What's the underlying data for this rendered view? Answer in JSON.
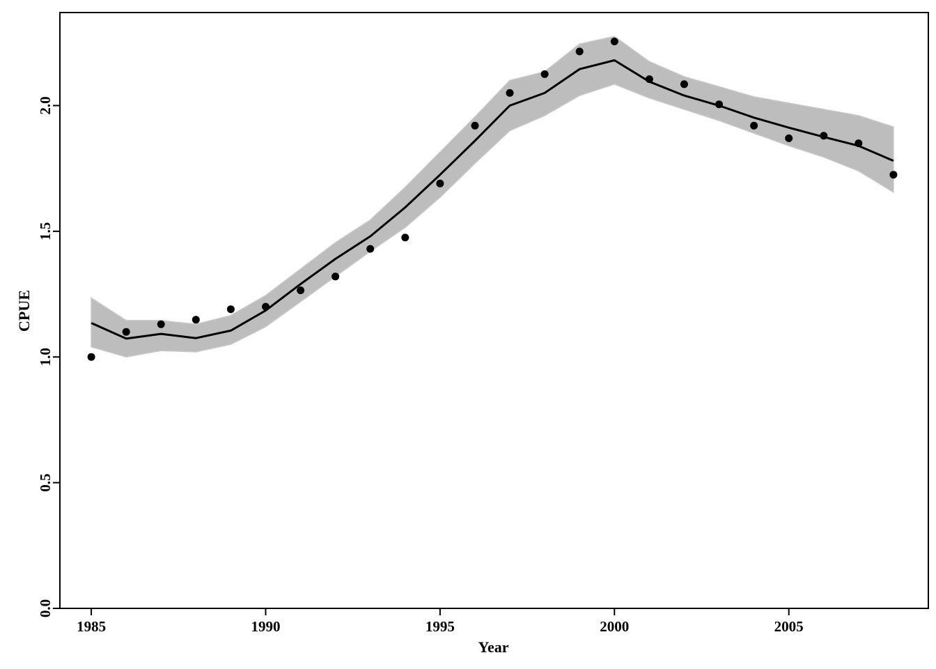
{
  "chart_data": {
    "type": "line",
    "title": "",
    "xlabel": "Year",
    "ylabel": "CPUE",
    "xlim": [
      1984.1,
      2009.0
    ],
    "ylim": [
      0.0,
      2.37
    ],
    "x_ticks": [
      1985,
      1990,
      1995,
      2000,
      2005
    ],
    "y_ticks": [
      0.0,
      0.5,
      1.0,
      1.5,
      2.0
    ],
    "x_tick_labels": [
      "1985",
      "1990",
      "1995",
      "2000",
      "2005"
    ],
    "y_tick_labels": [
      "0.0",
      "0.5",
      "1.0",
      "1.5",
      "2.0"
    ],
    "grid": false,
    "legend": "none",
    "x": [
      1985,
      1986,
      1987,
      1988,
      1989,
      1990,
      1991,
      1992,
      1993,
      1994,
      1995,
      1996,
      1997,
      1998,
      1999,
      2000,
      2001,
      2002,
      2003,
      2004,
      2005,
      2006,
      2007,
      2008
    ],
    "series": [
      {
        "kind": "fitted-line",
        "color": "#000000",
        "values": [
          1.135,
          1.073,
          1.092,
          1.075,
          1.105,
          1.185,
          1.29,
          1.39,
          1.48,
          1.595,
          1.725,
          1.86,
          2.0,
          2.05,
          2.145,
          2.18,
          2.095,
          2.04,
          2.0,
          1.952,
          1.912,
          1.875,
          1.84,
          1.78
        ]
      },
      {
        "kind": "observed-points",
        "color": "#000000",
        "values": [
          1.0,
          1.1,
          1.13,
          1.148,
          1.19,
          1.2,
          1.265,
          1.32,
          1.43,
          1.475,
          1.69,
          1.92,
          2.05,
          2.125,
          2.215,
          2.255,
          2.105,
          2.085,
          2.005,
          1.92,
          1.87,
          1.88,
          1.85,
          1.725
        ]
      },
      {
        "kind": "uncertainty-band",
        "color": "#bdbdbd",
        "lower": [
          1.04,
          1.0,
          1.025,
          1.02,
          1.05,
          1.12,
          1.22,
          1.32,
          1.42,
          1.515,
          1.635,
          1.77,
          1.9,
          1.96,
          2.04,
          2.085,
          2.03,
          1.985,
          1.94,
          1.89,
          1.84,
          1.795,
          1.74,
          1.655
        ],
        "upper": [
          1.235,
          1.145,
          1.145,
          1.13,
          1.165,
          1.245,
          1.35,
          1.455,
          1.545,
          1.675,
          1.815,
          1.955,
          2.1,
          2.135,
          2.245,
          2.275,
          2.175,
          2.115,
          2.075,
          2.035,
          2.01,
          1.985,
          1.96,
          1.915
        ]
      }
    ]
  }
}
